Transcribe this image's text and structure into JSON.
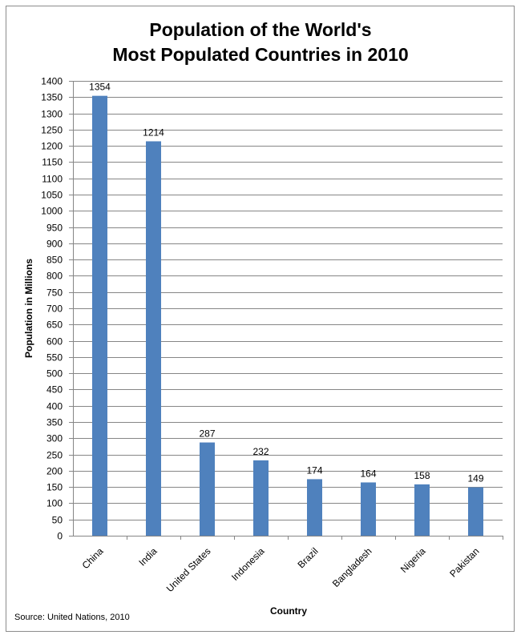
{
  "chart_data": {
    "type": "bar",
    "title_lines": [
      "Population of the World's",
      "Most Populated Countries in 2010"
    ],
    "xlabel": "Country",
    "ylabel": "Population in Millions",
    "categories": [
      "China",
      "India",
      "United States",
      "Indonesia",
      "Brazil",
      "Bangladesh",
      "Nigeria",
      "Pakistan"
    ],
    "values": [
      1354,
      1214,
      287,
      232,
      174,
      164,
      158,
      149
    ],
    "ylim": [
      0,
      1400
    ],
    "ytick_step": 50,
    "grid": true,
    "legend": "none",
    "bar_color": "#4f81bd",
    "source": "Source: United Nations, 2010"
  }
}
